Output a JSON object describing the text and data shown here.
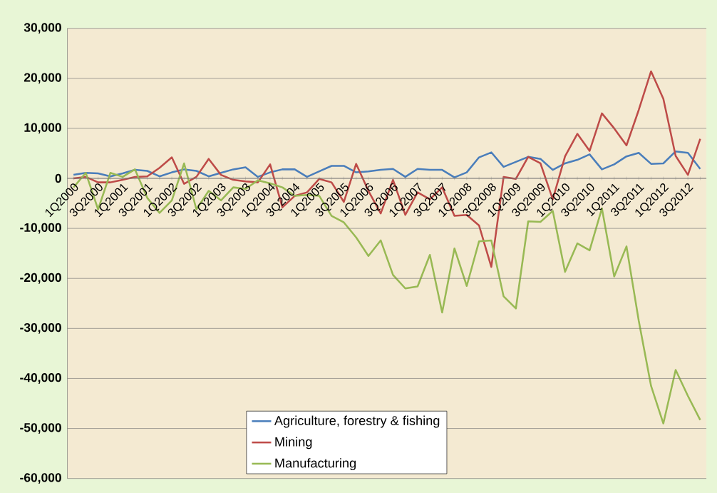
{
  "chart_data": {
    "type": "line",
    "categories": [
      "1Q2000",
      null,
      "3Q2000",
      null,
      "1Q2001",
      null,
      "3Q2001",
      null,
      "1Q2002",
      null,
      "3Q2002",
      null,
      "1Q2003",
      null,
      "3Q2003",
      null,
      "1Q2004",
      null,
      "3Q2004",
      null,
      "1Q2005",
      null,
      "3Q2005",
      null,
      "1Q2006",
      null,
      "3Q2006",
      null,
      "1Q2007",
      null,
      "3Q2007",
      null,
      "1Q2008",
      null,
      "3Q2008",
      null,
      "1Q2009",
      null,
      "3Q2009",
      null,
      "1Q2010",
      null,
      "3Q2010",
      null,
      "1Q2011",
      null,
      "3Q2011",
      null,
      "1Q2012",
      null,
      "3Q2012",
      null
    ],
    "series": [
      {
        "name": "Agriculture, forestry & fishing",
        "color": "#4a7ebb",
        "values": [
          700,
          1100,
          1000,
          400,
          1000,
          1700,
          1500,
          400,
          1200,
          1800,
          1500,
          400,
          1100,
          1800,
          2200,
          300,
          1200,
          1800,
          1800,
          300,
          1400,
          2500,
          2500,
          1200,
          1400,
          1700,
          1900,
          300,
          1900,
          1700,
          1700,
          200,
          1200,
          4200,
          5200,
          2300,
          3300,
          4300,
          3900,
          1700,
          3000,
          3700,
          4800,
          1800,
          2800,
          4400,
          5100,
          2900,
          3000,
          5400,
          5100,
          1900
        ]
      },
      {
        "name": "Mining",
        "color": "#be4b48",
        "values": [
          0,
          300,
          -800,
          -800,
          -300,
          300,
          400,
          2100,
          4200,
          -1100,
          300,
          3900,
          700,
          -300,
          -600,
          -800,
          2800,
          -5800,
          -3500,
          -2800,
          -100,
          -800,
          -4700,
          2900,
          -2500,
          -7000,
          -300,
          -7300,
          -2800,
          -4200,
          -1800,
          -7500,
          -7300,
          -9400,
          -17700,
          300,
          -100,
          4300,
          3000,
          -4200,
          4400,
          8900,
          5500,
          13000,
          10000,
          6600,
          13700,
          21400,
          15900,
          4500,
          700,
          7900
        ]
      },
      {
        "name": "Manufacturing",
        "color": "#98b954",
        "values": [
          -1800,
          1100,
          -6200,
          1100,
          300,
          1800,
          -3900,
          -6900,
          -4400,
          3000,
          -6200,
          -2500,
          -4400,
          -1800,
          -2100,
          -400,
          -1000,
          -1800,
          -3500,
          -3300,
          -3500,
          -7500,
          -8800,
          -11800,
          -15500,
          -12400,
          -19300,
          -22000,
          -21600,
          -15300,
          -26800,
          -14000,
          -21500,
          -12600,
          -12400,
          -23600,
          -26000,
          -8600,
          -8700,
          -6500,
          -18700,
          -13000,
          -14400,
          -6000,
          -19600,
          -13600,
          -28500,
          -41500,
          -49000,
          -38300,
          -43500,
          -48300
        ]
      }
    ],
    "ylim": [
      -60000,
      30000
    ],
    "yticks": [
      {
        "value": -60000,
        "label": "-60,000"
      },
      {
        "value": -50000,
        "label": "-50,000"
      },
      {
        "value": -40000,
        "label": "-40,000"
      },
      {
        "value": -30000,
        "label": "-30,000"
      },
      {
        "value": -20000,
        "label": "-20,000"
      },
      {
        "value": -10000,
        "label": "-10,000"
      },
      {
        "value": 0,
        "label": "0"
      },
      {
        "value": 10000,
        "label": "10,000"
      },
      {
        "value": 20000,
        "label": "20,000"
      },
      {
        "value": 30000,
        "label": "30,000"
      }
    ],
    "grid": "y",
    "legend": "bottom",
    "marker": "none",
    "line_style": "solid"
  }
}
